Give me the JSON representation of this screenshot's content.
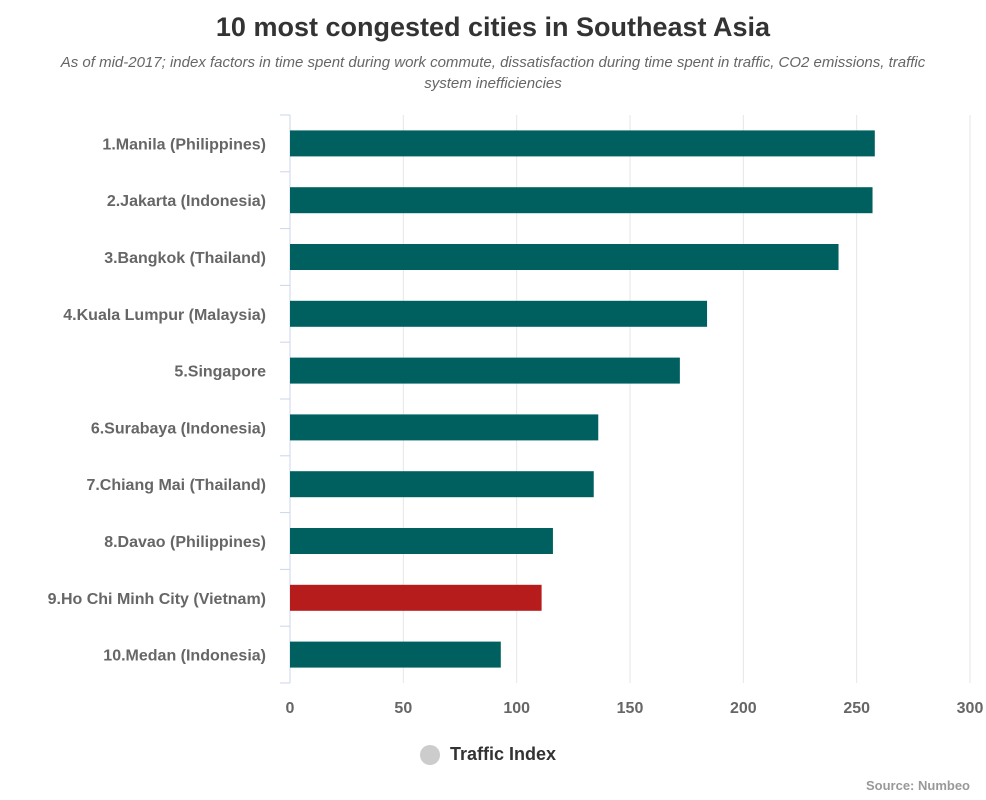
{
  "title": "10 most congested cities in Southeast Asia",
  "subtitle": "As of mid-2017; index factors in time spent during work commute, dissatisfaction during time spent in traffic, CO2 emissions, traffic system inefficiencies",
  "legend_label": "Traffic Index",
  "source": "Source: Numbeo",
  "colors": {
    "bar": "#006060",
    "highlight": "#b71c1c",
    "legend_marker": "#cccccc"
  },
  "chart_data": {
    "type": "bar",
    "orientation": "horizontal",
    "categories": [
      "1.Manila (Philippines)",
      "2.Jakarta (Indonesia)",
      "3.Bangkok (Thailand)",
      "4.Kuala Lumpur (Malaysia)",
      "5.Singapore",
      "6.Surabaya (Indonesia)",
      "7.Chiang Mai (Thailand)",
      "8.Davao (Philippines)",
      "9.Ho Chi Minh City (Vietnam)",
      "10.Medan (Indonesia)"
    ],
    "series": [
      {
        "name": "Traffic Index",
        "values": [
          258,
          257,
          242,
          184,
          172,
          136,
          134,
          116,
          111,
          93
        ]
      }
    ],
    "highlighted_category": "9.Ho Chi Minh City (Vietnam)",
    "xlim": [
      0,
      300
    ],
    "xticks": [
      0,
      50,
      100,
      150,
      200,
      250,
      300
    ],
    "grid": true,
    "legend_position": "bottom"
  }
}
